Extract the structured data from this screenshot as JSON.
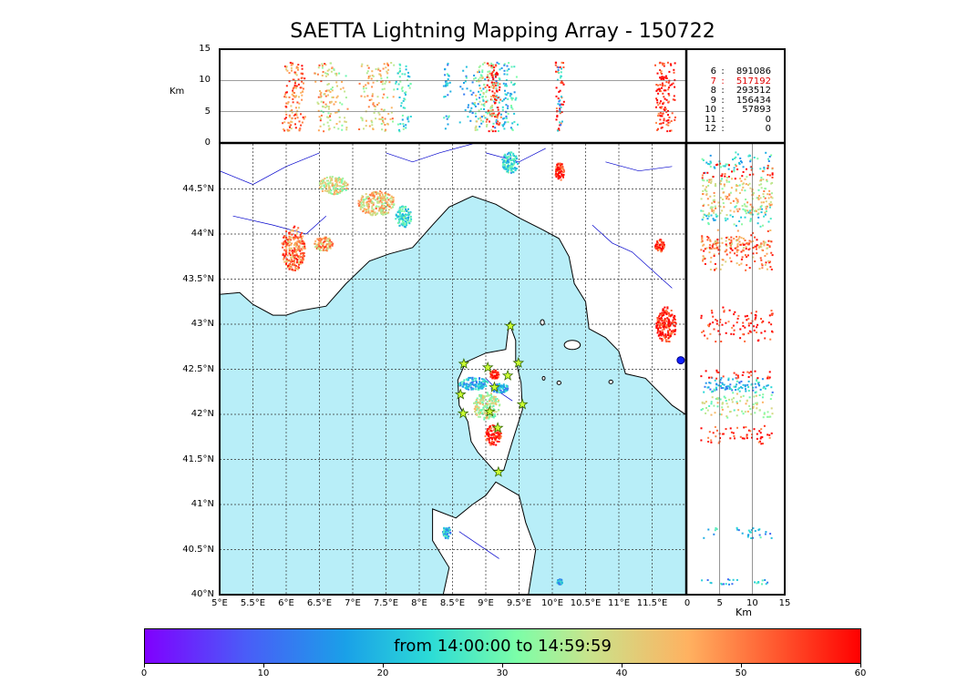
{
  "title": "SAETTA Lightning Mapping Array - 150722",
  "map": {
    "lon_range": [
      5,
      12
    ],
    "lat_range": [
      40,
      45
    ],
    "lon_ticks": [
      "5°E",
      "5.5°E",
      "6°E",
      "6.5°E",
      "7°E",
      "7.5°E",
      "8°E",
      "8.5°E",
      "9°E",
      "9.5°E",
      "10°E",
      "10.5°E",
      "11°E",
      "11.5°E"
    ],
    "lat_ticks": [
      "40°N",
      "40.5°N",
      "41°N",
      "41.5°N",
      "42°N",
      "42.5°N",
      "43°N",
      "43.5°N",
      "44°N",
      "44.5°N"
    ],
    "sea_color": "#b8eef8",
    "land_color": "#ffffff",
    "coastline_color": "#000000",
    "river_color": "#0000cc",
    "station_color": "#ccff33",
    "stations": [
      {
        "lon": 9.37,
        "lat": 42.98
      },
      {
        "lon": 8.67,
        "lat": 42.56
      },
      {
        "lon": 9.03,
        "lat": 42.52
      },
      {
        "lon": 9.49,
        "lat": 42.57
      },
      {
        "lon": 9.33,
        "lat": 42.43
      },
      {
        "lon": 9.13,
        "lat": 42.3
      },
      {
        "lon": 8.62,
        "lat": 42.22
      },
      {
        "lon": 9.55,
        "lat": 42.11
      },
      {
        "lon": 8.66,
        "lat": 42.01
      },
      {
        "lon": 9.06,
        "lat": 42.03
      },
      {
        "lon": 9.18,
        "lat": 41.85
      },
      {
        "lon": 9.19,
        "lat": 41.36
      }
    ]
  },
  "top_panel": {
    "ylabel": "Km",
    "yticks": [
      "0",
      "5",
      "10",
      "15"
    ],
    "ylim": [
      0,
      15
    ]
  },
  "right_panel": {
    "xlabel": "Km",
    "xticks": [
      "0",
      "5",
      "10",
      "15"
    ],
    "xlim": [
      0,
      15
    ]
  },
  "station_counts": [
    {
      "station": "6",
      "sep": ":",
      "count": "891086",
      "highlight": false
    },
    {
      "station": "7",
      "sep": ":",
      "count": "517192",
      "highlight": true
    },
    {
      "station": "8",
      "sep": ":",
      "count": "293512",
      "highlight": false
    },
    {
      "station": "9",
      "sep": ":",
      "count": "156434",
      "highlight": false
    },
    {
      "station": "10",
      "sep": ":",
      "count": "57893",
      "highlight": false
    },
    {
      "station": "11",
      "sep": ":",
      "count": "0",
      "highlight": false
    },
    {
      "station": "12",
      "sep": ":",
      "count": "0",
      "highlight": false
    }
  ],
  "colorbar": {
    "label": "from 14:00:00 to 14:59:59",
    "ticks": [
      "0",
      "10",
      "20",
      "30",
      "40",
      "50",
      "60"
    ],
    "range": [
      0,
      60
    ],
    "stops": [
      "#8000ff",
      "#4a5cf8",
      "#1aa0e8",
      "#2cdcd6",
      "#7cfea8",
      "#c8e48c",
      "#ffb160",
      "#ff5a30",
      "#ff0000"
    ]
  },
  "storm_cells": [
    {
      "lon": 6.1,
      "lat": 43.85,
      "rx": 0.18,
      "ry": 0.25,
      "t": 50
    },
    {
      "lon": 6.55,
      "lat": 43.9,
      "rx": 0.14,
      "ry": 0.08,
      "t": 46
    },
    {
      "lon": 7.35,
      "lat": 44.35,
      "rx": 0.28,
      "ry": 0.14,
      "t": 42
    },
    {
      "lon": 6.7,
      "lat": 44.55,
      "rx": 0.22,
      "ry": 0.1,
      "t": 38
    },
    {
      "lon": 7.75,
      "lat": 44.2,
      "rx": 0.12,
      "ry": 0.12,
      "t": 24
    },
    {
      "lon": 9.35,
      "lat": 44.8,
      "rx": 0.12,
      "ry": 0.12,
      "t": 22
    },
    {
      "lon": 10.1,
      "lat": 44.7,
      "rx": 0.07,
      "ry": 0.1,
      "t": 58
    },
    {
      "lon": 11.6,
      "lat": 43.88,
      "rx": 0.07,
      "ry": 0.07,
      "t": 56
    },
    {
      "lon": 11.7,
      "lat": 43.0,
      "rx": 0.15,
      "ry": 0.2,
      "t": 58
    },
    {
      "lon": 8.8,
      "lat": 42.35,
      "rx": 0.22,
      "ry": 0.07,
      "t": 18
    },
    {
      "lon": 9.2,
      "lat": 42.3,
      "rx": 0.14,
      "ry": 0.05,
      "t": 18
    },
    {
      "lon": 9.12,
      "lat": 42.45,
      "rx": 0.07,
      "ry": 0.05,
      "t": 58
    },
    {
      "lon": 9.0,
      "lat": 42.1,
      "rx": 0.2,
      "ry": 0.15,
      "t": 36
    },
    {
      "lon": 9.1,
      "lat": 41.77,
      "rx": 0.12,
      "ry": 0.12,
      "t": 58
    },
    {
      "lon": 8.4,
      "lat": 40.7,
      "rx": 0.06,
      "ry": 0.07,
      "t": 18
    },
    {
      "lon": 10.1,
      "lat": 40.15,
      "rx": 0.04,
      "ry": 0.03,
      "t": 18
    }
  ]
}
